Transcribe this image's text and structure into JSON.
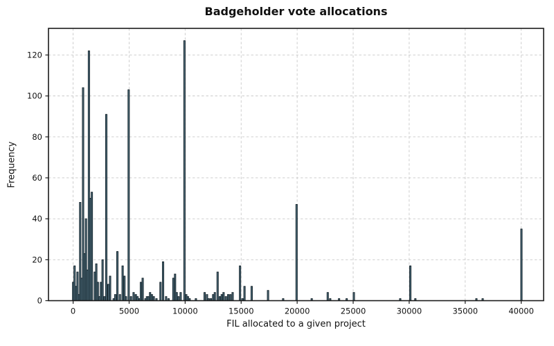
{
  "chart_data": {
    "type": "bar",
    "title": "Badgeholder vote allocations",
    "xlabel": "FIL allocated to a given project",
    "ylabel": "Frequency",
    "xlim": [
      -2200,
      42000
    ],
    "ylim": [
      0,
      133
    ],
    "xticks": [
      0,
      5000,
      10000,
      15000,
      20000,
      25000,
      30000,
      35000,
      40000
    ],
    "yticks": [
      0,
      20,
      40,
      60,
      80,
      100,
      120
    ],
    "grid": "dashed-both-axes",
    "legend_position": "none",
    "bin_width": 130,
    "colors": {
      "bar_fill": "#51707e",
      "bar_edge": "#101e26",
      "grid": "#c9c9c9",
      "spine": "#1a1a1a",
      "text": "#111111",
      "background": "#ffffff"
    },
    "bars": [
      [
        0,
        9
      ],
      [
        130,
        17
      ],
      [
        260,
        7
      ],
      [
        390,
        14
      ],
      [
        520,
        3
      ],
      [
        630,
        48
      ],
      [
        760,
        11
      ],
      [
        890,
        104
      ],
      [
        1020,
        23
      ],
      [
        1150,
        40
      ],
      [
        1280,
        15
      ],
      [
        1410,
        122
      ],
      [
        1540,
        50
      ],
      [
        1670,
        53
      ],
      [
        1930,
        14
      ],
      [
        2070,
        18
      ],
      [
        2210,
        9
      ],
      [
        2350,
        2
      ],
      [
        2480,
        9
      ],
      [
        2630,
        20
      ],
      [
        2800,
        2
      ],
      [
        2960,
        91
      ],
      [
        3150,
        8
      ],
      [
        3300,
        12
      ],
      [
        3620,
        1
      ],
      [
        3760,
        3
      ],
      [
        3950,
        24
      ],
      [
        4180,
        3
      ],
      [
        4420,
        17
      ],
      [
        4580,
        12
      ],
      [
        4720,
        2
      ],
      [
        4960,
        103
      ],
      [
        5170,
        2
      ],
      [
        5400,
        4
      ],
      [
        5600,
        3
      ],
      [
        5750,
        2
      ],
      [
        5900,
        1
      ],
      [
        6050,
        9
      ],
      [
        6210,
        11
      ],
      [
        6460,
        1
      ],
      [
        6590,
        2
      ],
      [
        6720,
        2
      ],
      [
        6870,
        4
      ],
      [
        7030,
        3
      ],
      [
        7200,
        2
      ],
      [
        7440,
        1
      ],
      [
        7800,
        9
      ],
      [
        8030,
        19
      ],
      [
        8300,
        2
      ],
      [
        8520,
        1
      ],
      [
        8950,
        11
      ],
      [
        9100,
        13
      ],
      [
        9250,
        4
      ],
      [
        9400,
        2
      ],
      [
        9600,
        4
      ],
      [
        9940,
        127
      ],
      [
        10100,
        3
      ],
      [
        10250,
        2
      ],
      [
        10400,
        1
      ],
      [
        10960,
        1
      ],
      [
        11740,
        4
      ],
      [
        11950,
        3
      ],
      [
        12100,
        1
      ],
      [
        12300,
        1
      ],
      [
        12500,
        3
      ],
      [
        12650,
        4
      ],
      [
        12900,
        14
      ],
      [
        13100,
        2
      ],
      [
        13270,
        3
      ],
      [
        13430,
        4
      ],
      [
        13640,
        2
      ],
      [
        13840,
        3
      ],
      [
        14040,
        3
      ],
      [
        14240,
        4
      ],
      [
        14900,
        17
      ],
      [
        15120,
        1
      ],
      [
        15300,
        7
      ],
      [
        15940,
        7
      ],
      [
        17400,
        5
      ],
      [
        18750,
        1
      ],
      [
        19950,
        47
      ],
      [
        21300,
        1
      ],
      [
        22730,
        4
      ],
      [
        22950,
        1
      ],
      [
        23740,
        1
      ],
      [
        24420,
        1
      ],
      [
        25060,
        4
      ],
      [
        29200,
        1
      ],
      [
        30100,
        17
      ],
      [
        30550,
        1
      ],
      [
        36000,
        1
      ],
      [
        36560,
        1
      ],
      [
        40020,
        35
      ]
    ]
  }
}
